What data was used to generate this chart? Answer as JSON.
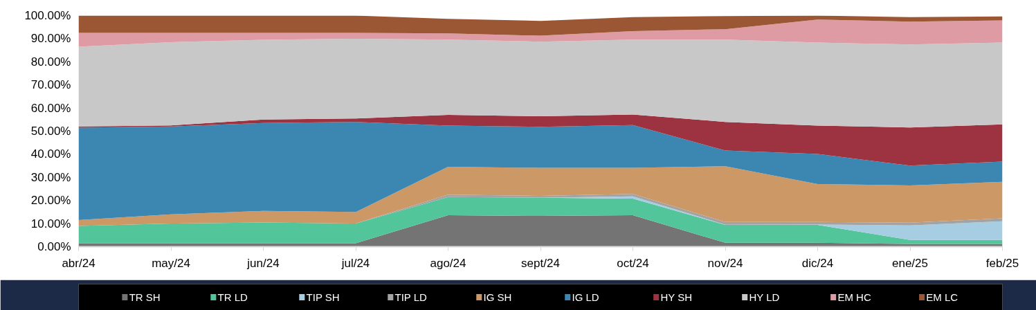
{
  "chart_data": {
    "type": "area",
    "stacked": true,
    "legend": "bottom",
    "grid": false,
    "categories": [
      "abr/24",
      "may/24",
      "jun/24",
      "jul/24",
      "ago/24",
      "sept/24",
      "oct/24",
      "nov/24",
      "dic/24",
      "ene/25",
      "feb/25"
    ],
    "ylim": [
      0,
      100
    ],
    "yticks": [
      {
        "value": 0,
        "label": "0.00%"
      },
      {
        "value": 10,
        "label": "10.00%"
      },
      {
        "value": 20,
        "label": "20.00%"
      },
      {
        "value": 30,
        "label": "30.00%"
      },
      {
        "value": 40,
        "label": "40.00%"
      },
      {
        "value": 50,
        "label": "50.00%"
      },
      {
        "value": 60,
        "label": "60.00%"
      },
      {
        "value": 70,
        "label": "70.00%"
      },
      {
        "value": 80,
        "label": "80.00%"
      },
      {
        "value": 90,
        "label": "90.00%"
      },
      {
        "value": 100,
        "label": "100.00%"
      }
    ],
    "series": [
      {
        "name": "TR SH",
        "color": "#747474",
        "values": [
          1.5,
          1.5,
          1.5,
          1.5,
          13.6,
          13.3,
          13.6,
          1.7,
          1.7,
          1.2,
          1.2
        ]
      },
      {
        "name": "TR LD",
        "color": "#52c59a",
        "values": [
          7.5,
          8.5,
          9,
          8.5,
          7.9,
          7.9,
          7.2,
          7.7,
          7.7,
          1.7,
          1.7
        ]
      },
      {
        "name": "TIP SH",
        "color": "#a7cde3",
        "values": [
          0,
          0,
          0,
          0,
          0,
          0,
          1,
          0.1,
          0.2,
          6.3,
          8.1
        ]
      },
      {
        "name": "TIP LD",
        "color": "#a3a3a3",
        "values": [
          0,
          0,
          0,
          0,
          1,
          0.8,
          1,
          1.2,
          1.1,
          1.2,
          1.3
        ]
      },
      {
        "name": "IG SH",
        "color": "#cc9866",
        "values": [
          2.5,
          4,
          5,
          5,
          12.1,
          12.1,
          11.3,
          24.1,
          16.4,
          16.1,
          15.8
        ]
      },
      {
        "name": "IG LD",
        "color": "#3c86b2",
        "values": [
          40,
          38,
          38,
          39,
          17.8,
          17.8,
          18.5,
          6.8,
          13,
          8.6,
          8.7
        ]
      },
      {
        "name": "HY SH",
        "color": "#9d3340",
        "values": [
          0.5,
          0.5,
          1.5,
          1.5,
          4.6,
          4.5,
          4.6,
          12.4,
          12.3,
          16.5,
          16.1
        ]
      },
      {
        "name": "HY LD",
        "color": "#c8c8c8",
        "values": [
          34.5,
          36,
          34.5,
          34.5,
          32.6,
          32.3,
          32.4,
          35.6,
          35.9,
          35.9,
          35.4
        ]
      },
      {
        "name": "EM HC",
        "color": "#df9ba4",
        "values": [
          6,
          4,
          3,
          2.5,
          2.7,
          2.6,
          3.7,
          4.5,
          10,
          9.9,
          9.6
        ]
      },
      {
        "name": "EM LC",
        "color": "#9b5734",
        "values": [
          7.5,
          7.5,
          7.5,
          7.5,
          6.3,
          6.4,
          6,
          5.7,
          1.7,
          1.9,
          1.7
        ]
      }
    ]
  }
}
